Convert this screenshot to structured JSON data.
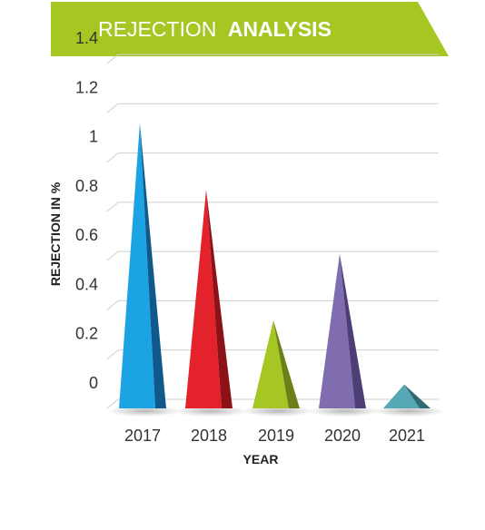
{
  "banner": {
    "title_light": "REJECTION",
    "title_bold": "ANALYSIS",
    "color": "#a5c623"
  },
  "chart_data": {
    "type": "bar",
    "title": "REJECTION ANALYSIS",
    "xlabel": "YEAR",
    "ylabel": "REJECTION IN %",
    "ylim": [
      0,
      1.4
    ],
    "yticks": [
      "0",
      "0.2",
      "0.4",
      "0.6",
      "0.8",
      "1",
      "1.2",
      "1.4"
    ],
    "categories": [
      "2017",
      "2018",
      "2019",
      "2020",
      "2021"
    ],
    "values": [
      1.15,
      0.88,
      0.35,
      0.62,
      0.09
    ],
    "colors": [
      "#1ba3e3",
      "#e3222b",
      "#a5c623",
      "#7f6db0",
      "#56a9b4"
    ],
    "shades": [
      "#0f5a8a",
      "#8c1218",
      "#6b8116",
      "#4d3f75",
      "#2f6a72"
    ],
    "grid": true,
    "legend": "none"
  }
}
